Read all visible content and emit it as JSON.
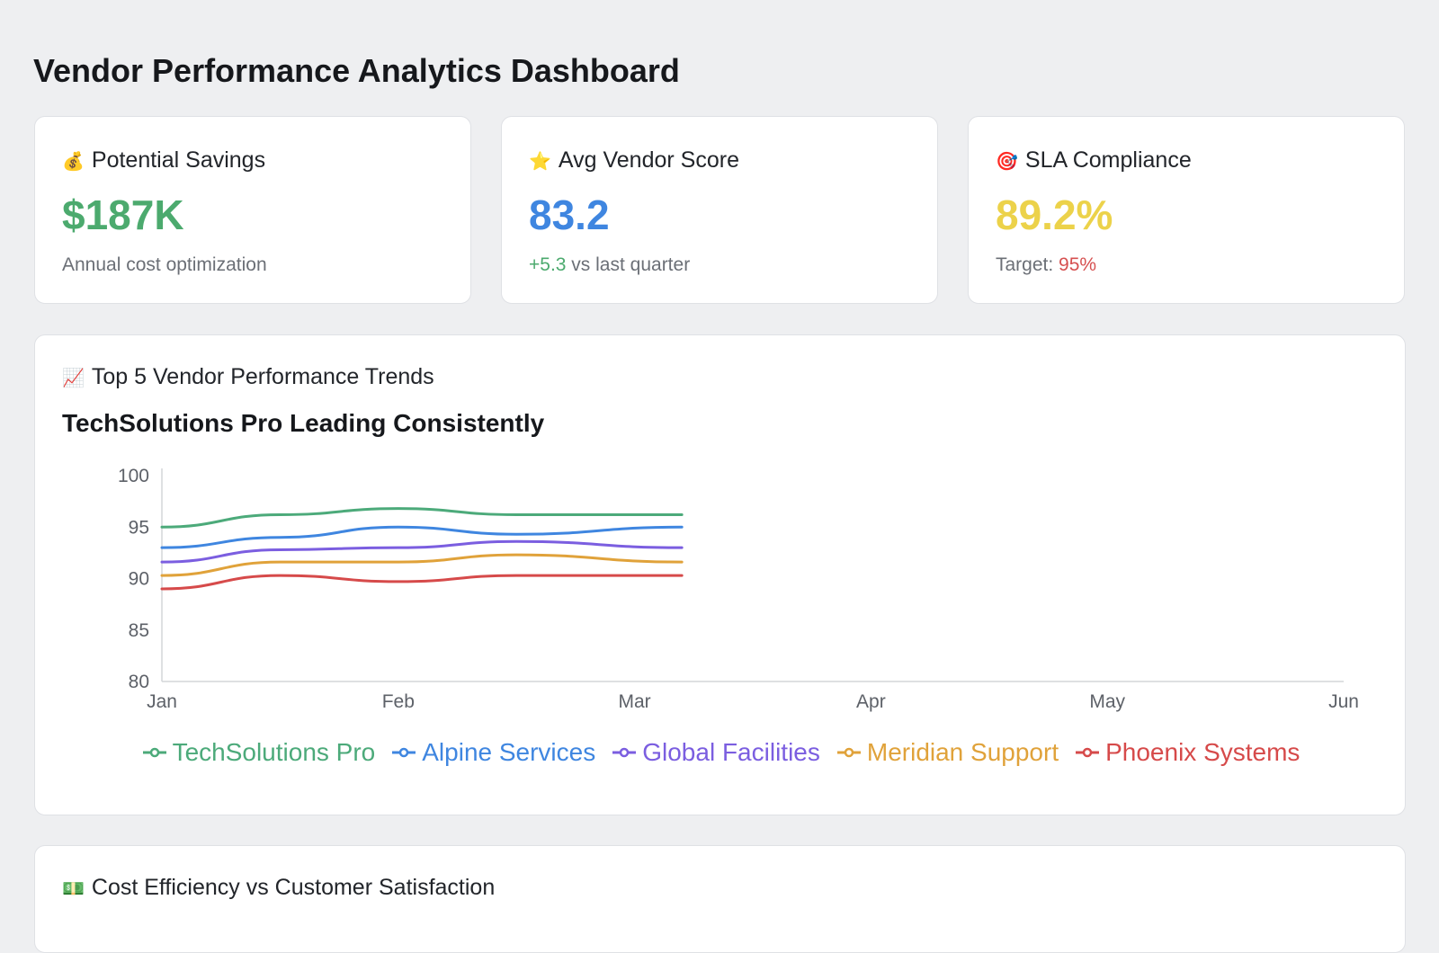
{
  "page": {
    "title": "Vendor Performance Analytics Dashboard"
  },
  "kpis": [
    {
      "icon": "money-bag-icon",
      "emoji": "💰",
      "label": "Potential Savings",
      "value": "$187K",
      "value_color": "#4caa6e",
      "sub_prefix": "",
      "sub_text": "Annual cost optimization",
      "sub_suffix": "",
      "sub_prefix_color": "#4caa6e",
      "sub_suffix_color": "#d65050"
    },
    {
      "icon": "star-icon",
      "emoji": "⭐",
      "label": "Avg Vendor Score",
      "value": "83.2",
      "value_color": "#3f86e0",
      "sub_prefix": "+5.3",
      "sub_text": " vs last quarter",
      "sub_suffix": "",
      "sub_prefix_color": "#4caa6e",
      "sub_suffix_color": "#d65050"
    },
    {
      "icon": "target-icon",
      "emoji": "🎯",
      "label": "SLA Compliance",
      "value": "89.2%",
      "value_color": "#ecd24a",
      "sub_prefix": "",
      "sub_text": "Target: ",
      "sub_suffix": "95%",
      "sub_prefix_color": "#4caa6e",
      "sub_suffix_color": "#d65050"
    }
  ],
  "trend_card": {
    "icon": "chart-increasing-icon",
    "emoji": "📈",
    "heading": "Top 5 Vendor Performance Trends"
  },
  "chart_data": {
    "type": "line",
    "title": "TechSolutions Pro Leading Consistently",
    "xlabel": "",
    "ylabel": "",
    "categories": [
      "Jan",
      "Feb",
      "Mar",
      "Apr",
      "May",
      "Jun"
    ],
    "y_ticks": [
      "100",
      "95",
      "90",
      "85",
      "80"
    ],
    "ylim": [
      80,
      100
    ],
    "grid": false,
    "legend": "bottom",
    "series": [
      {
        "name": "TechSolutions Pro",
        "color": "#4caa7a",
        "x": [
          0,
          0.5,
          1,
          1.5,
          2.2
        ],
        "values": [
          95.0,
          96.2,
          96.8,
          96.2,
          96.2
        ]
      },
      {
        "name": "Alpine Services",
        "color": "#3f86e0",
        "x": [
          0,
          0.5,
          1,
          1.5,
          2.2
        ],
        "values": [
          93.0,
          94.0,
          95.0,
          94.3,
          95.0
        ]
      },
      {
        "name": "Global Facilities",
        "color": "#7b5ee0",
        "x": [
          0,
          0.5,
          1,
          1.5,
          2.2
        ],
        "values": [
          91.6,
          92.8,
          93.0,
          93.6,
          93.0
        ]
      },
      {
        "name": "Meridian Support",
        "color": "#e0a23a",
        "x": [
          0,
          0.5,
          1,
          1.5,
          2.2
        ],
        "values": [
          90.3,
          91.6,
          91.6,
          92.3,
          91.6
        ]
      },
      {
        "name": "Phoenix Systems",
        "color": "#d64a4a",
        "x": [
          0,
          0.5,
          1,
          1.5,
          2.2
        ],
        "values": [
          89.0,
          90.3,
          89.7,
          90.3,
          90.3
        ]
      }
    ]
  },
  "bottom_card": {
    "icon": "dollar-banknote-icon",
    "emoji": "💵",
    "heading": "Cost Efficiency vs Customer Satisfaction"
  }
}
